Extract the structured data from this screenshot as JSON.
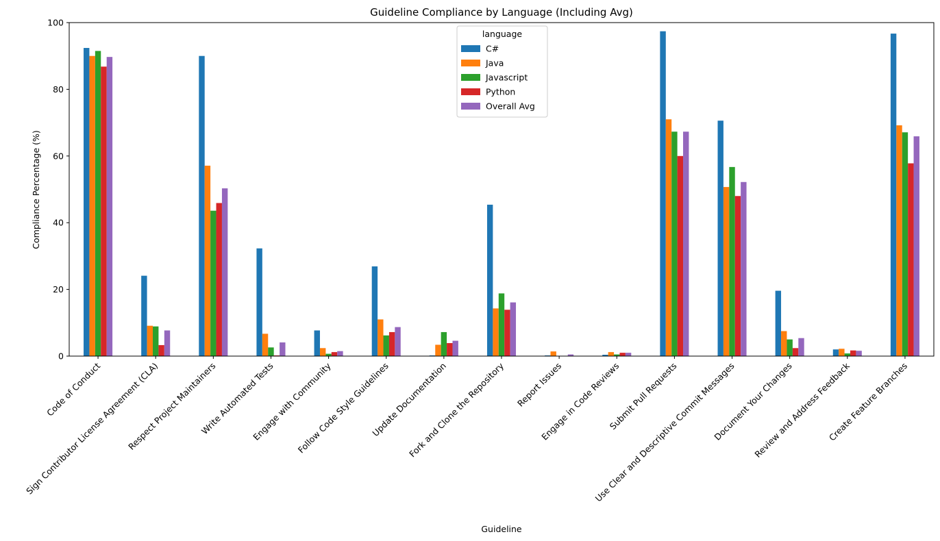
{
  "chart_data": {
    "type": "bar",
    "title": "Guideline Compliance by Language (Including Avg)",
    "xlabel": "Guideline",
    "ylabel": "Compliance Percentage (%)",
    "ylim": [
      0,
      100
    ],
    "yticks": [
      0,
      20,
      40,
      60,
      80,
      100
    ],
    "grid": false,
    "legend": {
      "title": "language",
      "placement": "top-center"
    },
    "categories": [
      "Code of Conduct",
      "Sign Contributor License Agreement (CLA)",
      "Respect Project Maintainers",
      "Write Automated Tests",
      "Engage with Community",
      "Follow Code Style Guidelines",
      "Update Documentation",
      "Fork and Clone the Repository",
      "Report Issues",
      "Engage in Code Reviews",
      "Submit Pull Requests",
      "Use Clear and Descriptive Commit Messages",
      "Document Your Changes",
      "Review and Address Feedback",
      "Create Feature Branches"
    ],
    "series": [
      {
        "name": "C#",
        "color": "#1f77b4",
        "values": [
          92.4,
          24.1,
          90.0,
          32.3,
          7.7,
          26.9,
          0.2,
          45.4,
          0.2,
          0.4,
          97.4,
          70.6,
          19.6,
          2.0,
          96.7
        ]
      },
      {
        "name": "Java",
        "color": "#ff7f0e",
        "values": [
          90.0,
          9.1,
          57.1,
          6.7,
          2.4,
          11.0,
          3.4,
          14.3,
          1.4,
          1.2,
          71.0,
          50.7,
          7.5,
          2.2,
          69.2
        ]
      },
      {
        "name": "Javascript",
        "color": "#2ca02c",
        "values": [
          91.5,
          8.9,
          43.6,
          2.6,
          0.7,
          6.2,
          7.2,
          18.8,
          0.1,
          0.5,
          67.3,
          56.7,
          5.0,
          0.8,
          67.1
        ]
      },
      {
        "name": "Python",
        "color": "#d62728",
        "values": [
          86.8,
          3.3,
          45.9,
          0.2,
          1.2,
          7.2,
          3.9,
          13.9,
          0.1,
          1.0,
          60.0,
          48.0,
          2.4,
          1.7,
          57.8
        ]
      },
      {
        "name": "Overall Avg",
        "color": "#9467bd",
        "values": [
          89.7,
          7.7,
          50.3,
          4.1,
          1.5,
          8.7,
          4.6,
          16.1,
          0.5,
          1.0,
          67.3,
          52.2,
          5.4,
          1.6,
          65.9
        ]
      }
    ]
  }
}
